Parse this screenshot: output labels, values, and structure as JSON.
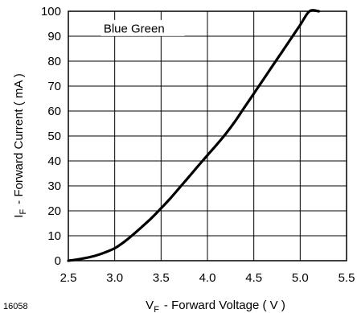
{
  "figure_id": "16058",
  "chart_data": {
    "type": "line",
    "xlabel": {
      "symbol": "V",
      "subscript": "F",
      "text": "- Forward Voltage ( V )"
    },
    "ylabel": {
      "symbol": "I",
      "subscript": "F",
      "text": "- Forward Current ( mA )"
    },
    "xlim": [
      2.5,
      5.5
    ],
    "ylim": [
      0,
      100
    ],
    "x_ticks": [
      "2.5",
      "3.0",
      "3.5",
      "4.0",
      "4.5",
      "5.0",
      "5.5"
    ],
    "y_ticks": [
      "0",
      "10",
      "20",
      "30",
      "40",
      "50",
      "60",
      "70",
      "80",
      "90",
      "100"
    ],
    "grid": true,
    "series": [
      {
        "name": "Blue Green",
        "color": "#000000",
        "x": [
          2.5,
          2.6,
          2.7,
          2.8,
          2.9,
          3.0,
          3.1,
          3.2,
          3.3,
          3.4,
          3.5,
          3.6,
          3.7,
          3.8,
          3.9,
          4.0,
          4.1,
          4.2,
          4.3,
          4.4,
          4.5,
          4.6,
          4.7,
          4.8,
          4.9,
          5.0,
          5.1,
          5.2
        ],
        "y": [
          0,
          0.5,
          1.2,
          2.1,
          3.4,
          5.0,
          7.5,
          10.5,
          13.8,
          17.2,
          21.0,
          25.0,
          29.3,
          33.6,
          38.0,
          42.3,
          46.5,
          51.0,
          56.0,
          61.5,
          67.0,
          72.5,
          78.0,
          83.5,
          89.0,
          94.5,
          100.0,
          100.0
        ]
      }
    ]
  }
}
